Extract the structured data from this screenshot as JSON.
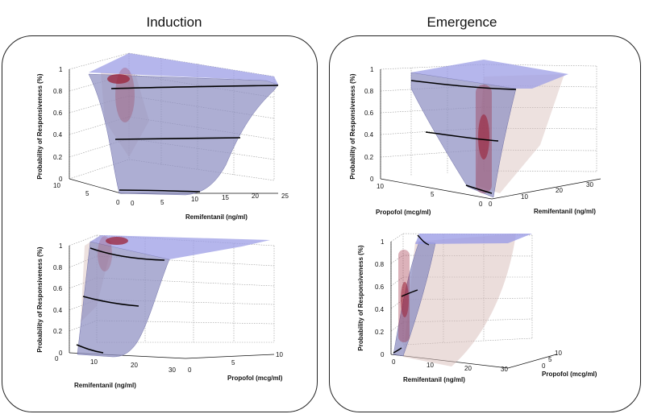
{
  "titles": {
    "left": "Induction",
    "right": "Emergence"
  },
  "chart_data": [
    {
      "type": "surface3d",
      "column": "Induction",
      "xlabel": "Remifentanil (ng/ml)",
      "ylabel": "Probability of Responsiveness (%)",
      "zticks": [
        "0",
        "0.2",
        "0.4",
        "0.6",
        "0.8",
        "1"
      ],
      "remi_ticks": [
        "0",
        "5",
        "10",
        "15",
        "20",
        "25"
      ],
      "propofol_ticks": [
        "10",
        "5",
        "0"
      ],
      "isolines": [
        0.05,
        0.5,
        0.95
      ]
    },
    {
      "type": "surface3d",
      "column": "Induction",
      "xlabel": "Remifentanil (ng/ml)",
      "y2label": "Propofol (mcg/ml)",
      "ylabel": "Probability of Responsiveness (%)",
      "zticks": [
        "0",
        "0.2",
        "0.4",
        "0.6",
        "0.8",
        "1"
      ],
      "remi_ticks": [
        "0",
        "10",
        "20",
        "30"
      ],
      "propofol_ticks": [
        "0",
        "5",
        "10"
      ],
      "isolines": [
        0.05,
        0.5,
        0.95
      ]
    },
    {
      "type": "surface3d",
      "column": "Emergence",
      "xlabel": "Propofol (mcg/ml)",
      "x2label": "Remifentanil (ng/ml)",
      "ylabel": "Probability of Responsiveness (%)",
      "zticks": [
        "0",
        "0.2",
        "0.4",
        "0.6",
        "0.8",
        "1"
      ],
      "propofol_ticks": [
        "10",
        "5",
        "0"
      ],
      "remi_ticks": [
        "0",
        "10",
        "20",
        "30"
      ],
      "isolines": [
        0.05,
        0.5,
        0.95
      ]
    },
    {
      "type": "surface3d",
      "column": "Emergence",
      "xlabel": "Remifentanil (ng/ml)",
      "y2label": "Propofol (mcg/ml)",
      "ylabel": "Probability of Responsiveness (%)",
      "zticks": [
        "0",
        "0.2",
        "0.4",
        "0.6",
        "0.8",
        "1"
      ],
      "remi_ticks": [
        "0",
        "10",
        "20",
        "30"
      ],
      "propofol_ticks": [
        "0",
        "5",
        "10"
      ],
      "isolines": [
        0.05,
        0.5,
        0.95
      ]
    }
  ],
  "colors": {
    "surface": "#8d8fc2",
    "surface_top": "#9c9ee6",
    "density": "#9b2238",
    "confidence": "#d8bcb8"
  }
}
